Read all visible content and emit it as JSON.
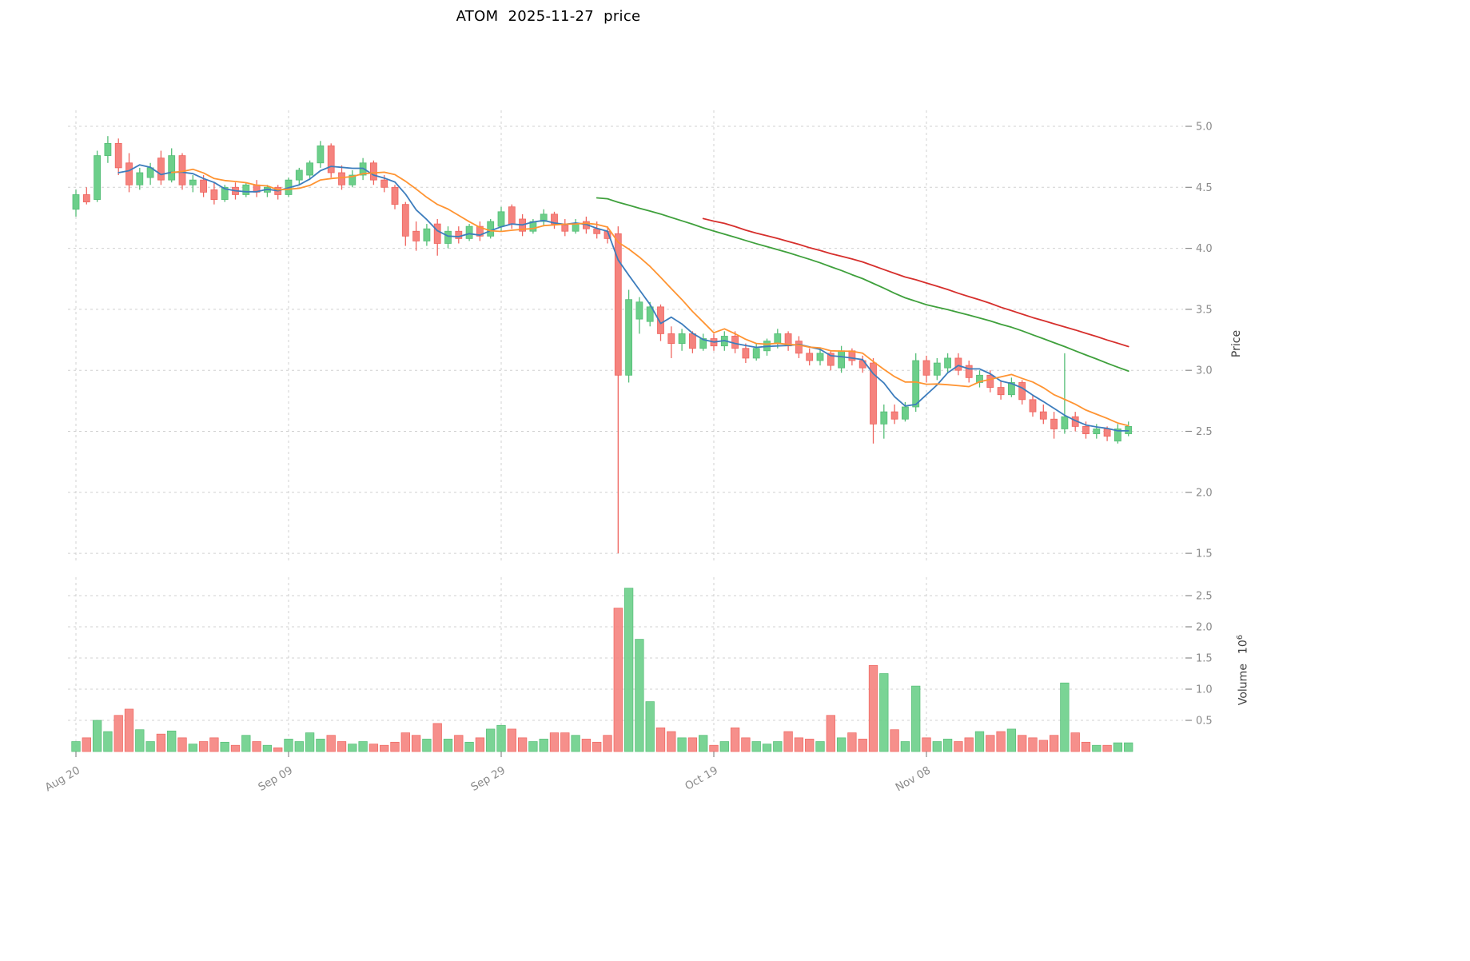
{
  "title": "ATOM  2025-11-27  price",
  "chart_data": {
    "type": "candlestick",
    "symbol": "ATOM",
    "as_of_date": "2025-11-27",
    "title": "ATOM  2025-11-27  price",
    "grid": true,
    "legend_position": "none",
    "x_ticks": [
      {
        "label": "Aug 20",
        "day": 0
      },
      {
        "label": "Sep 09",
        "day": 20
      },
      {
        "label": "Sep 29",
        "day": 40
      },
      {
        "label": "Oct 19",
        "day": 60
      },
      {
        "label": "Nov 08",
        "day": 80
      }
    ],
    "price_axis": {
      "label": "Price",
      "side": "right",
      "ticks": [
        "5.0",
        "4.5",
        "4.0",
        "3.5",
        "3.0",
        "2.5",
        "2.0",
        "1.5"
      ],
      "tick_values": [
        5.0,
        4.5,
        4.0,
        3.5,
        3.0,
        2.5,
        2.0,
        1.5
      ],
      "range": [
        1.4,
        5.1
      ]
    },
    "volume_axis": {
      "label": "Volume",
      "unit_base": "10",
      "unit_exp": "6",
      "side": "right",
      "ticks": [
        "2.5",
        "2.0",
        "1.5",
        "1.0",
        "0.5"
      ],
      "tick_values": [
        2.5,
        2.0,
        1.5,
        1.0,
        0.5
      ],
      "range": [
        0,
        2.8
      ]
    },
    "colors": {
      "up": "#6ccf8a",
      "up_edge": "#54bd76",
      "down": "#f5837e",
      "down_edge": "#ef655f",
      "ma_fast": "#3d7dbd",
      "ma_mid": "#ff9432",
      "ma_slow": "#3fa03c",
      "ma_slowest": "#d62f2c",
      "grid": "#d0d0d0",
      "tick_text": "#8a8a8a",
      "axis_label_text": "#3f3f3f",
      "title_text": "#000000",
      "background": "#ffffff"
    },
    "moving_averages": [
      {
        "label": "MA5",
        "window": 5,
        "color_key": "ma_fast"
      },
      {
        "label": "MA10",
        "window": 10,
        "color_key": "ma_mid"
      },
      {
        "label": "MA50",
        "window": 50,
        "color_key": "ma_slow"
      },
      {
        "label": "MA60",
        "window": 60,
        "color_key": "ma_slowest"
      }
    ],
    "ohlcv_columns": [
      "open",
      "high",
      "low",
      "close",
      "volume_millions"
    ],
    "ohlcv": [
      [
        4.32,
        4.48,
        4.26,
        4.44,
        0.16
      ],
      [
        4.44,
        4.5,
        4.36,
        4.38,
        0.22
      ],
      [
        4.4,
        4.8,
        4.38,
        4.76,
        0.5
      ],
      [
        4.76,
        4.92,
        4.7,
        4.86,
        0.32
      ],
      [
        4.86,
        4.9,
        4.6,
        4.66,
        0.58
      ],
      [
        4.7,
        4.78,
        4.46,
        4.52,
        0.68
      ],
      [
        4.52,
        4.66,
        4.48,
        4.62,
        0.35
      ],
      [
        4.58,
        4.7,
        4.52,
        4.66,
        0.16
      ],
      [
        4.74,
        4.8,
        4.52,
        4.56,
        0.28
      ],
      [
        4.56,
        4.82,
        4.54,
        4.76,
        0.33
      ],
      [
        4.76,
        4.78,
        4.48,
        4.52,
        0.22
      ],
      [
        4.52,
        4.6,
        4.46,
        4.56,
        0.12
      ],
      [
        4.56,
        4.6,
        4.42,
        4.46,
        0.16
      ],
      [
        4.48,
        4.54,
        4.36,
        4.4,
        0.22
      ],
      [
        4.4,
        4.52,
        4.38,
        4.5,
        0.15
      ],
      [
        4.5,
        4.54,
        4.4,
        4.44,
        0.1
      ],
      [
        4.44,
        4.54,
        4.42,
        4.52,
        0.26
      ],
      [
        4.52,
        4.56,
        4.42,
        4.46,
        0.16
      ],
      [
        4.46,
        4.52,
        4.42,
        4.5,
        0.1
      ],
      [
        4.5,
        4.52,
        4.4,
        4.44,
        0.06
      ],
      [
        4.44,
        4.58,
        4.42,
        4.56,
        0.2
      ],
      [
        4.56,
        4.66,
        4.52,
        4.64,
        0.16
      ],
      [
        4.6,
        4.72,
        4.56,
        4.7,
        0.3
      ],
      [
        4.7,
        4.88,
        4.66,
        4.84,
        0.2
      ],
      [
        4.84,
        4.86,
        4.58,
        4.62,
        0.26
      ],
      [
        4.62,
        4.68,
        4.48,
        4.52,
        0.16
      ],
      [
        4.52,
        4.64,
        4.5,
        4.6,
        0.12
      ],
      [
        4.6,
        4.74,
        4.56,
        4.7,
        0.16
      ],
      [
        4.7,
        4.72,
        4.52,
        4.56,
        0.12
      ],
      [
        4.56,
        4.6,
        4.46,
        4.5,
        0.1
      ],
      [
        4.5,
        4.52,
        4.32,
        4.36,
        0.15
      ],
      [
        4.36,
        4.38,
        4.02,
        4.1,
        0.3
      ],
      [
        4.14,
        4.22,
        3.98,
        4.06,
        0.26
      ],
      [
        4.06,
        4.2,
        4.02,
        4.16,
        0.2
      ],
      [
        4.2,
        4.24,
        3.94,
        4.04,
        0.45
      ],
      [
        4.04,
        4.18,
        4.0,
        4.14,
        0.2
      ],
      [
        4.14,
        4.18,
        4.04,
        4.08,
        0.26
      ],
      [
        4.08,
        4.2,
        4.06,
        4.18,
        0.15
      ],
      [
        4.18,
        4.22,
        4.06,
        4.1,
        0.22
      ],
      [
        4.1,
        4.24,
        4.08,
        4.22,
        0.36
      ],
      [
        4.18,
        4.34,
        4.14,
        4.3,
        0.42
      ],
      [
        4.34,
        4.36,
        4.16,
        4.2,
        0.36
      ],
      [
        4.24,
        4.28,
        4.1,
        4.14,
        0.22
      ],
      [
        4.14,
        4.24,
        4.12,
        4.22,
        0.16
      ],
      [
        4.22,
        4.32,
        4.18,
        4.28,
        0.2
      ],
      [
        4.28,
        4.3,
        4.16,
        4.2,
        0.3
      ],
      [
        4.2,
        4.24,
        4.1,
        4.14,
        0.3
      ],
      [
        4.14,
        4.24,
        4.12,
        4.2,
        0.26
      ],
      [
        4.22,
        4.26,
        4.12,
        4.16,
        0.2
      ],
      [
        4.16,
        4.22,
        4.08,
        4.12,
        0.15
      ],
      [
        4.14,
        4.18,
        4.04,
        4.08,
        0.26
      ],
      [
        4.12,
        4.18,
        1.5,
        2.96,
        2.3
      ],
      [
        2.96,
        3.66,
        2.9,
        3.58,
        2.62
      ],
      [
        3.42,
        3.6,
        3.3,
        3.56,
        1.8
      ],
      [
        3.4,
        3.56,
        3.36,
        3.52,
        0.8
      ],
      [
        3.52,
        3.54,
        3.24,
        3.3,
        0.38
      ],
      [
        3.3,
        3.36,
        3.1,
        3.22,
        0.32
      ],
      [
        3.22,
        3.34,
        3.16,
        3.3,
        0.22
      ],
      [
        3.3,
        3.32,
        3.14,
        3.18,
        0.22
      ],
      [
        3.18,
        3.3,
        3.16,
        3.26,
        0.26
      ],
      [
        3.26,
        3.3,
        3.16,
        3.2,
        0.1
      ],
      [
        3.2,
        3.32,
        3.16,
        3.28,
        0.16
      ],
      [
        3.28,
        3.32,
        3.14,
        3.18,
        0.38
      ],
      [
        3.18,
        3.22,
        3.06,
        3.1,
        0.22
      ],
      [
        3.1,
        3.22,
        3.08,
        3.18,
        0.16
      ],
      [
        3.16,
        3.26,
        3.12,
        3.24,
        0.12
      ],
      [
        3.22,
        3.34,
        3.18,
        3.3,
        0.16
      ],
      [
        3.3,
        3.32,
        3.16,
        3.2,
        0.32
      ],
      [
        3.24,
        3.28,
        3.1,
        3.14,
        0.22
      ],
      [
        3.14,
        3.18,
        3.04,
        3.08,
        0.2
      ],
      [
        3.08,
        3.18,
        3.04,
        3.14,
        0.16
      ],
      [
        3.14,
        3.16,
        3.0,
        3.04,
        0.58
      ],
      [
        3.02,
        3.2,
        2.98,
        3.16,
        0.22
      ],
      [
        3.16,
        3.18,
        3.04,
        3.08,
        0.3
      ],
      [
        3.08,
        3.12,
        2.98,
        3.02,
        0.2
      ],
      [
        3.06,
        3.1,
        2.4,
        2.56,
        1.38
      ],
      [
        2.56,
        2.72,
        2.44,
        2.66,
        1.25
      ],
      [
        2.66,
        2.72,
        2.56,
        2.6,
        0.35
      ],
      [
        2.6,
        2.74,
        2.58,
        2.7,
        0.16
      ],
      [
        2.7,
        3.14,
        2.66,
        3.08,
        1.05
      ],
      [
        3.08,
        3.12,
        2.9,
        2.96,
        0.22
      ],
      [
        2.96,
        3.1,
        2.92,
        3.06,
        0.16
      ],
      [
        3.02,
        3.14,
        2.98,
        3.1,
        0.2
      ],
      [
        3.1,
        3.14,
        2.96,
        3.0,
        0.16
      ],
      [
        3.04,
        3.08,
        2.9,
        2.94,
        0.22
      ],
      [
        2.9,
        3.0,
        2.86,
        2.96,
        0.32
      ],
      [
        2.96,
        3.0,
        2.82,
        2.86,
        0.26
      ],
      [
        2.86,
        2.92,
        2.76,
        2.8,
        0.32
      ],
      [
        2.8,
        2.94,
        2.78,
        2.9,
        0.36
      ],
      [
        2.9,
        2.92,
        2.72,
        2.76,
        0.26
      ],
      [
        2.76,
        2.8,
        2.62,
        2.66,
        0.22
      ],
      [
        2.66,
        2.72,
        2.56,
        2.6,
        0.18
      ],
      [
        2.6,
        2.66,
        2.44,
        2.52,
        0.26
      ],
      [
        2.52,
        3.14,
        2.48,
        2.62,
        1.1
      ],
      [
        2.62,
        2.66,
        2.5,
        2.54,
        0.3
      ],
      [
        2.54,
        2.58,
        2.44,
        2.48,
        0.15
      ],
      [
        2.48,
        2.56,
        2.44,
        2.52,
        0.1
      ],
      [
        2.52,
        2.54,
        2.42,
        2.46,
        0.1
      ],
      [
        2.42,
        2.56,
        2.4,
        2.52,
        0.14
      ],
      [
        2.48,
        2.58,
        2.46,
        2.54,
        0.14
      ]
    ]
  }
}
